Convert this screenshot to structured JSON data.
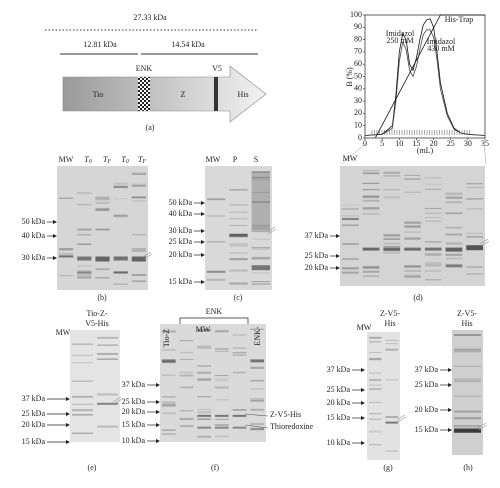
{
  "panel_a": {
    "mass_total": "27.33 kDa",
    "mass_tio": "12.81 kDa",
    "mass_z": "14.54 kDa",
    "tag_enk": "ENK",
    "tag_v5": "V5",
    "domain_tio": "Tio",
    "domain_z": "Z",
    "domain_his": "His",
    "caption": "(a)"
  },
  "panel_b": {
    "lanes": [
      {
        "text": "MW"
      },
      {
        "text": "T",
        "sub": "0"
      },
      {
        "text": "T",
        "sub": "F"
      },
      {
        "text": "T",
        "sub": "0"
      },
      {
        "text": "T",
        "sub": "F"
      }
    ],
    "markers": [
      "50 kDa",
      "40 kDa",
      "30 kDa"
    ],
    "caption": "(b)"
  },
  "panel_c": {
    "lanes": [
      "MW",
      "P",
      "S"
    ],
    "markers": [
      "50 kDa",
      "40 kDa",
      "30 kDa",
      "25 kDa",
      "20 kDa",
      "15 kDa"
    ],
    "caption": "(c)"
  },
  "panel_d": {
    "chart": {
      "type": "line",
      "y_label": "B (%)",
      "x_label": "(mL)",
      "xlim": [
        0,
        35
      ],
      "ylim": [
        0,
        100
      ],
      "xticks": [
        0,
        5,
        10,
        15,
        20,
        25,
        30,
        35
      ],
      "yticks": [
        0,
        10,
        20,
        30,
        40,
        50,
        60,
        70,
        80,
        90,
        100
      ],
      "annotations": [
        [
          "Imidazol",
          "250 mM"
        ],
        [
          "Imidazol",
          "430 mM"
        ],
        [
          "His-Trap"
        ]
      ],
      "series": [
        {
          "color": "#111",
          "x": [
            0,
            5,
            8,
            9,
            10,
            11,
            12,
            13,
            14,
            15,
            16,
            17,
            18,
            19,
            20,
            21,
            22,
            24,
            26,
            28,
            30,
            35
          ],
          "values": [
            2,
            3,
            10,
            35,
            70,
            85,
            80,
            60,
            55,
            65,
            80,
            92,
            96,
            97,
            90,
            70,
            45,
            20,
            8,
            4,
            3,
            2
          ]
        },
        {
          "color": "#444",
          "x": [
            0,
            5,
            8,
            9,
            10,
            11,
            12,
            13,
            14,
            15,
            16,
            17,
            18,
            19,
            20,
            21,
            22,
            24,
            26,
            28,
            30,
            35
          ],
          "values": [
            2,
            3,
            8,
            30,
            62,
            78,
            72,
            55,
            50,
            58,
            72,
            84,
            88,
            88,
            82,
            64,
            40,
            18,
            7,
            4,
            3,
            2
          ]
        },
        {
          "color": "#111",
          "x": [
            3,
            22,
            35
          ],
          "values": [
            0,
            100,
            100
          ]
        }
      ]
    },
    "gel": {
      "lanes": [
        "MW"
      ],
      "markers": [
        "37 kDa",
        "25 kDa",
        "20 kDa"
      ]
    },
    "caption": "(d)"
  },
  "panel_e": {
    "lane_mw": "MW",
    "sample": [
      "Tio-Z-",
      "V5-His"
    ],
    "markers": [
      "37 kDa",
      "25 kDa",
      "20 kDa",
      "15 kDa"
    ],
    "caption": "(e)"
  },
  "panel_f": {
    "lane_tioz": "Tio-Z",
    "group": "ENK",
    "lane_mw": "MW",
    "lane_enk": "ENK-",
    "markers": [
      "37 kDa",
      "25 kDa",
      "20 kDa",
      "15 kDa",
      "10 kDa"
    ],
    "products": [
      "Z-V5-His",
      "Thioredoxine"
    ],
    "caption": "(f)"
  },
  "panel_g": {
    "lane_mw": "MW",
    "sample": [
      "Z-V5-",
      "His"
    ],
    "markers": [
      "37 kDa",
      "25 kDa",
      "20 kDa",
      "15 kDa",
      "10 kDa"
    ],
    "caption": "(g)"
  },
  "panel_h": {
    "sample": [
      "Z-V5-",
      "His"
    ],
    "markers": [
      "37 kDa",
      "25 kDa",
      "20 kDa",
      "15 kDa"
    ],
    "caption": "(h)"
  }
}
